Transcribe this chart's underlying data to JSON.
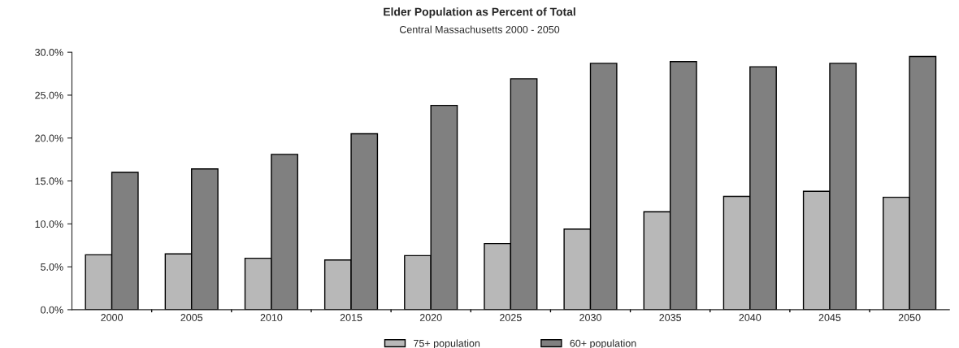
{
  "chart_data": {
    "type": "bar",
    "title": "Elder Population as Percent of Total",
    "subtitle": "Central Massachusetts 2000 - 2050",
    "categories": [
      "2000",
      "2005",
      "2010",
      "2015",
      "2020",
      "2025",
      "2030",
      "2035",
      "2040",
      "2045",
      "2050"
    ],
    "series": [
      {
        "name": "75+ population",
        "color": "#b8b8b8",
        "values": [
          6.4,
          6.5,
          6.0,
          5.8,
          6.3,
          7.7,
          9.4,
          11.4,
          13.2,
          13.8,
          13.1
        ]
      },
      {
        "name": "60+ population",
        "color": "#808080",
        "values": [
          16.0,
          16.4,
          18.1,
          20.5,
          23.8,
          26.9,
          28.7,
          28.9,
          28.3,
          28.7,
          29.5
        ]
      }
    ],
    "ylim": [
      0,
      30
    ],
    "yticks": [
      {
        "value": 0,
        "label": "0.0%"
      },
      {
        "value": 5,
        "label": "5.0%"
      },
      {
        "value": 10,
        "label": "10.0%"
      },
      {
        "value": 15,
        "label": "15.0%"
      },
      {
        "value": 20,
        "label": "20.0%"
      },
      {
        "value": 25,
        "label": "25.0%"
      },
      {
        "value": 30,
        "label": "30.0%"
      }
    ],
    "grid": false,
    "legend": "bottom"
  }
}
